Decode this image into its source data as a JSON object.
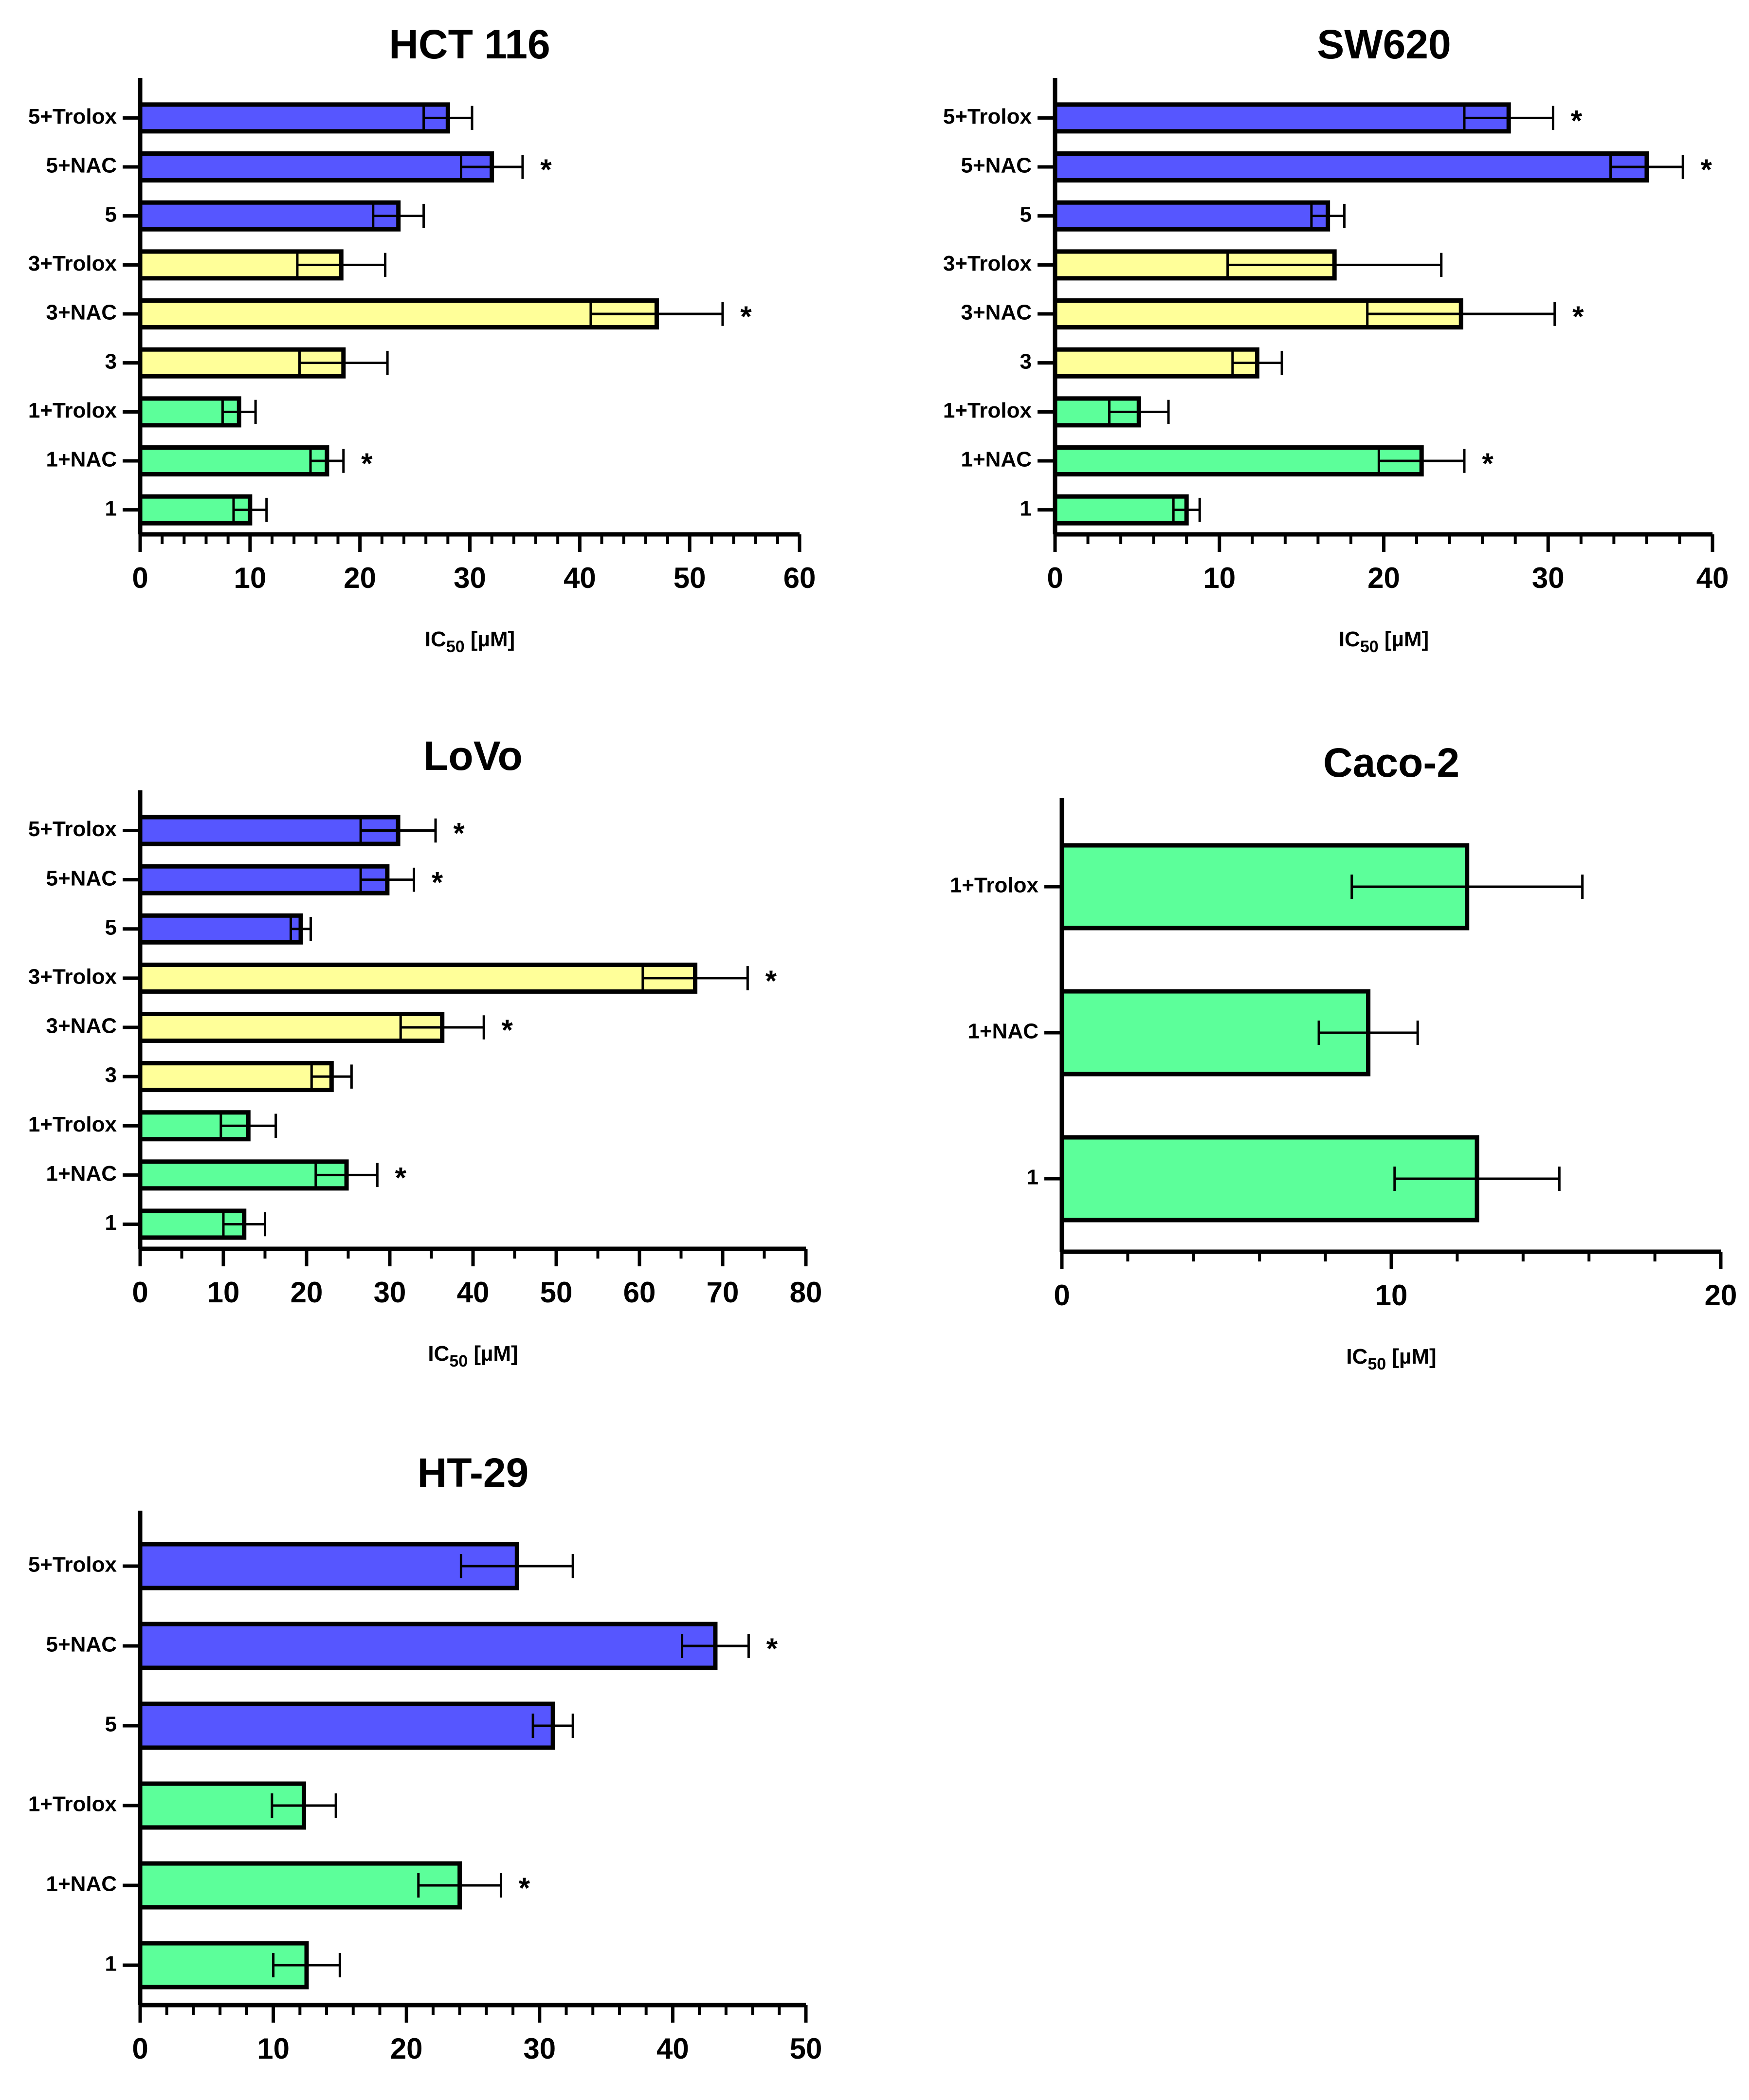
{
  "colors": {
    "blue": "#5656ff",
    "yellow": "#ffff99",
    "green": "#5cff9a",
    "stroke": "#000000"
  },
  "chart_data": [
    {
      "type": "bar",
      "orientation": "horizontal",
      "title": "HCT 116",
      "xlabel": "IC50 [µM]",
      "xlim": [
        0,
        60
      ],
      "xticks": [
        0,
        10,
        20,
        30,
        40,
        50,
        60
      ],
      "minor_per_major": 5,
      "categories": [
        "5+Trolox",
        "5+NAC",
        "5",
        "3+Trolox",
        "3+NAC",
        "3",
        "1+Trolox",
        "1+NAC",
        "1"
      ],
      "values": [
        28.0,
        32.0,
        23.5,
        18.3,
        47.0,
        18.5,
        9.0,
        17.0,
        10.0
      ],
      "errors": [
        2.2,
        2.8,
        2.3,
        4.0,
        6.0,
        4.0,
        1.5,
        1.5,
        1.5
      ],
      "groups": [
        "blue",
        "blue",
        "blue",
        "yellow",
        "yellow",
        "yellow",
        "green",
        "green",
        "green"
      ],
      "significant": [
        false,
        true,
        false,
        false,
        true,
        false,
        false,
        true,
        false
      ],
      "star_symbol": "*"
    },
    {
      "type": "bar",
      "orientation": "horizontal",
      "title": "SW620",
      "xlabel": "IC50 [µM]",
      "xlim": [
        0,
        40
      ],
      "xticks": [
        0,
        10,
        20,
        30,
        40
      ],
      "minor_per_major": 5,
      "categories": [
        "5+Trolox",
        "5+NAC",
        "5",
        "3+Trolox",
        "3+NAC",
        "3",
        "1+Trolox",
        "1+NAC",
        "1"
      ],
      "values": [
        27.6,
        36.0,
        16.6,
        17.0,
        24.7,
        12.3,
        5.1,
        22.3,
        8.0
      ],
      "errors": [
        2.7,
        2.2,
        1.0,
        6.5,
        5.7,
        1.5,
        1.8,
        2.6,
        0.8
      ],
      "groups": [
        "blue",
        "blue",
        "blue",
        "yellow",
        "yellow",
        "yellow",
        "green",
        "green",
        "green"
      ],
      "significant": [
        true,
        true,
        false,
        false,
        true,
        false,
        false,
        true,
        false
      ],
      "star_symbol": "*"
    },
    {
      "type": "bar",
      "orientation": "horizontal",
      "title": "LoVo",
      "xlabel": "IC50 [µM]",
      "xlim": [
        0,
        80
      ],
      "xticks": [
        0,
        10,
        20,
        30,
        40,
        50,
        60,
        70,
        80
      ],
      "minor_per_major": 2,
      "categories": [
        "5+Trolox",
        "5+NAC",
        "5",
        "3+Trolox",
        "3+NAC",
        "3",
        "1+Trolox",
        "1+NAC",
        "1"
      ],
      "values": [
        31.0,
        29.7,
        19.3,
        66.7,
        36.3,
        23.0,
        13.0,
        24.8,
        12.5
      ],
      "errors": [
        4.5,
        3.2,
        1.2,
        6.3,
        5.0,
        2.4,
        3.3,
        3.7,
        2.5
      ],
      "groups": [
        "blue",
        "blue",
        "blue",
        "yellow",
        "yellow",
        "yellow",
        "green",
        "green",
        "green"
      ],
      "significant": [
        true,
        true,
        false,
        true,
        true,
        false,
        false,
        true,
        false
      ],
      "star_symbol": "*"
    },
    {
      "type": "bar",
      "orientation": "horizontal",
      "title": "Caco-2",
      "xlabel": "IC50 [µM]",
      "xlim": [
        0,
        20
      ],
      "xticks": [
        0,
        10,
        20
      ],
      "minor_per_major": 5,
      "categories": [
        "1+Trolox",
        "1+NAC",
        "1"
      ],
      "values": [
        12.3,
        9.3,
        12.6
      ],
      "errors": [
        3.5,
        1.5,
        2.5
      ],
      "groups": [
        "green",
        "green",
        "green"
      ],
      "significant": [
        false,
        false,
        false
      ],
      "star_symbol": "*"
    },
    {
      "type": "bar",
      "orientation": "horizontal",
      "title": "HT-29",
      "xlabel": "IC50 [µM]",
      "xlim": [
        0,
        50
      ],
      "xticks": [
        0,
        10,
        20,
        30,
        40,
        50
      ],
      "minor_per_major": 5,
      "categories": [
        "5+Trolox",
        "5+NAC",
        "5",
        "1+Trolox",
        "1+NAC",
        "1"
      ],
      "values": [
        28.3,
        43.2,
        31.0,
        12.3,
        24.0,
        12.5
      ],
      "errors": [
        4.2,
        2.5,
        1.5,
        2.4,
        3.1,
        2.5
      ],
      "groups": [
        "blue",
        "blue",
        "blue",
        "green",
        "green",
        "green"
      ],
      "significant": [
        false,
        true,
        false,
        false,
        true,
        false
      ],
      "star_symbol": "*"
    }
  ]
}
